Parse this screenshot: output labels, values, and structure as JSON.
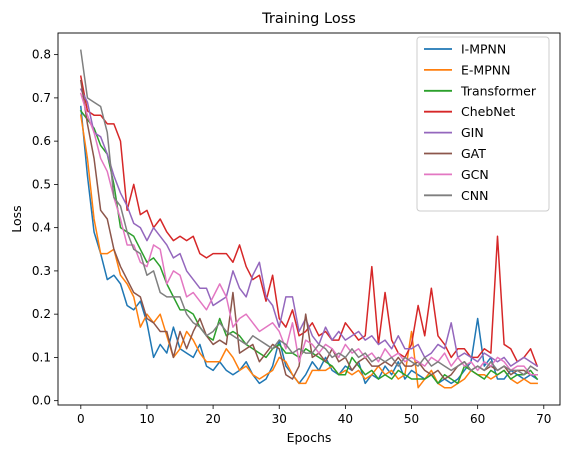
{
  "chart_data": {
    "type": "line",
    "title": "Training Loss",
    "xlabel": "Epochs",
    "ylabel": "Loss",
    "xlim": [
      -3.45,
      72.45
    ],
    "ylim": [
      -0.01,
      0.85
    ],
    "xticks": [
      0,
      10,
      20,
      30,
      40,
      50,
      60,
      70
    ],
    "yticks": [
      0.0,
      0.1,
      0.2,
      0.3,
      0.4,
      0.5,
      0.6,
      0.7,
      0.8
    ],
    "ytick_labels": [
      "0.0",
      "0.1",
      "0.2",
      "0.3",
      "0.4",
      "0.5",
      "0.6",
      "0.7",
      "0.8"
    ],
    "grid": false,
    "legend_position": "top-right",
    "x": [
      0,
      1,
      2,
      3,
      4,
      5,
      6,
      7,
      8,
      9,
      10,
      11,
      12,
      13,
      14,
      15,
      16,
      17,
      18,
      19,
      20,
      21,
      22,
      23,
      24,
      25,
      26,
      27,
      28,
      29,
      30,
      31,
      32,
      33,
      34,
      35,
      36,
      37,
      38,
      39,
      40,
      41,
      42,
      43,
      44,
      45,
      46,
      47,
      48,
      49,
      50,
      51,
      52,
      53,
      54,
      55,
      56,
      57,
      58,
      59,
      60,
      61,
      62,
      63,
      64,
      65,
      66,
      67,
      68,
      69
    ],
    "series": [
      {
        "name": "I-MPNN",
        "color": "#1f77b4",
        "values": [
          0.68,
          0.52,
          0.39,
          0.34,
          0.28,
          0.29,
          0.27,
          0.22,
          0.21,
          0.23,
          0.18,
          0.1,
          0.13,
          0.11,
          0.17,
          0.12,
          0.11,
          0.1,
          0.13,
          0.08,
          0.07,
          0.09,
          0.07,
          0.06,
          0.07,
          0.09,
          0.06,
          0.04,
          0.05,
          0.08,
          0.14,
          0.08,
          0.06,
          0.04,
          0.06,
          0.09,
          0.07,
          0.1,
          0.07,
          0.06,
          0.08,
          0.07,
          0.09,
          0.04,
          0.06,
          0.05,
          0.08,
          0.06,
          0.09,
          0.05,
          0.07,
          0.06,
          0.05,
          0.06,
          0.04,
          0.05,
          0.04,
          0.05,
          0.07,
          0.09,
          0.19,
          0.08,
          0.1,
          0.05,
          0.05,
          0.07,
          0.06,
          0.05,
          0.06,
          0.05
        ]
      },
      {
        "name": "E-MPNN",
        "color": "#ff7f0e",
        "values": [
          0.66,
          0.56,
          0.42,
          0.34,
          0.34,
          0.35,
          0.29,
          0.27,
          0.24,
          0.17,
          0.2,
          0.18,
          0.2,
          0.15,
          0.1,
          0.12,
          0.16,
          0.14,
          0.11,
          0.09,
          0.09,
          0.09,
          0.12,
          0.1,
          0.07,
          0.08,
          0.06,
          0.05,
          0.06,
          0.07,
          0.1,
          0.09,
          0.06,
          0.04,
          0.04,
          0.07,
          0.07,
          0.07,
          0.08,
          0.06,
          0.07,
          0.06,
          0.07,
          0.05,
          0.06,
          0.08,
          0.06,
          0.07,
          0.05,
          0.06,
          0.16,
          0.03,
          0.05,
          0.07,
          0.04,
          0.03,
          0.03,
          0.04,
          0.05,
          0.07,
          0.06,
          0.06,
          0.05,
          0.06,
          0.07,
          0.05,
          0.04,
          0.05,
          0.04,
          0.04
        ]
      },
      {
        "name": "Transformer",
        "color": "#2ca02c",
        "values": [
          0.67,
          0.65,
          0.63,
          0.59,
          0.57,
          0.5,
          0.4,
          0.39,
          0.38,
          0.35,
          0.32,
          0.33,
          0.31,
          0.27,
          0.24,
          0.21,
          0.21,
          0.2,
          0.17,
          0.15,
          0.14,
          0.19,
          0.15,
          0.16,
          0.15,
          0.13,
          0.12,
          0.11,
          0.1,
          0.12,
          0.13,
          0.11,
          0.11,
          0.1,
          0.12,
          0.11,
          0.1,
          0.09,
          0.08,
          0.06,
          0.06,
          0.1,
          0.08,
          0.06,
          0.07,
          0.05,
          0.06,
          0.05,
          0.07,
          0.06,
          0.05,
          0.05,
          0.05,
          0.06,
          0.04,
          0.06,
          0.05,
          0.04,
          0.08,
          0.07,
          0.06,
          0.05,
          0.07,
          0.06,
          0.07,
          0.05,
          0.06,
          0.06,
          0.07,
          0.05
        ]
      },
      {
        "name": "ChebNet",
        "color": "#d62728",
        "values": [
          0.75,
          0.67,
          0.66,
          0.66,
          0.64,
          0.64,
          0.6,
          0.44,
          0.5,
          0.43,
          0.44,
          0.4,
          0.42,
          0.39,
          0.37,
          0.38,
          0.37,
          0.38,
          0.34,
          0.33,
          0.34,
          0.34,
          0.34,
          0.32,
          0.36,
          0.31,
          0.28,
          0.29,
          0.23,
          0.29,
          0.19,
          0.17,
          0.21,
          0.15,
          0.16,
          0.18,
          0.15,
          0.16,
          0.14,
          0.14,
          0.18,
          0.16,
          0.14,
          0.15,
          0.31,
          0.13,
          0.25,
          0.14,
          0.11,
          0.1,
          0.13,
          0.22,
          0.15,
          0.26,
          0.15,
          0.13,
          0.1,
          0.12,
          0.12,
          0.1,
          0.1,
          0.12,
          0.11,
          0.38,
          0.13,
          0.12,
          0.09,
          0.1,
          0.12,
          0.08
        ]
      },
      {
        "name": "GIN",
        "color": "#9467bd",
        "values": [
          0.72,
          0.69,
          0.62,
          0.61,
          0.57,
          0.52,
          0.48,
          0.45,
          0.41,
          0.4,
          0.37,
          0.4,
          0.38,
          0.36,
          0.33,
          0.34,
          0.3,
          0.28,
          0.26,
          0.26,
          0.22,
          0.23,
          0.24,
          0.3,
          0.26,
          0.24,
          0.29,
          0.32,
          0.24,
          0.22,
          0.17,
          0.24,
          0.24,
          0.16,
          0.19,
          0.15,
          0.13,
          0.17,
          0.14,
          0.16,
          0.14,
          0.15,
          0.16,
          0.14,
          0.15,
          0.13,
          0.14,
          0.12,
          0.15,
          0.12,
          0.12,
          0.13,
          0.1,
          0.11,
          0.13,
          0.12,
          0.18,
          0.1,
          0.11,
          0.1,
          0.09,
          0.11,
          0.1,
          0.09,
          0.1,
          0.08,
          0.09,
          0.1,
          0.09,
          0.08
        ]
      },
      {
        "name": "GAT",
        "color": "#8c564b",
        "values": [
          0.74,
          0.64,
          0.56,
          0.44,
          0.42,
          0.35,
          0.31,
          0.28,
          0.25,
          0.24,
          0.19,
          0.18,
          0.16,
          0.16,
          0.1,
          0.16,
          0.12,
          0.16,
          0.19,
          0.15,
          0.13,
          0.14,
          0.13,
          0.25,
          0.11,
          0.12,
          0.13,
          0.09,
          0.11,
          0.13,
          0.12,
          0.06,
          0.05,
          0.08,
          0.2,
          0.1,
          0.11,
          0.09,
          0.12,
          0.09,
          0.1,
          0.07,
          0.09,
          0.1,
          0.08,
          0.08,
          0.09,
          0.08,
          0.1,
          0.08,
          0.08,
          0.09,
          0.07,
          0.06,
          0.07,
          0.05,
          0.06,
          0.08,
          0.09,
          0.07,
          0.08,
          0.07,
          0.08,
          0.07,
          0.08,
          0.06,
          0.07,
          0.07,
          0.06,
          0.06
        ]
      },
      {
        "name": "GCN",
        "color": "#e377c2",
        "values": [
          0.71,
          0.66,
          0.62,
          0.56,
          0.53,
          0.47,
          0.42,
          0.36,
          0.36,
          0.32,
          0.31,
          0.36,
          0.35,
          0.27,
          0.3,
          0.29,
          0.24,
          0.25,
          0.23,
          0.21,
          0.24,
          0.27,
          0.24,
          0.17,
          0.19,
          0.2,
          0.18,
          0.16,
          0.17,
          0.18,
          0.16,
          0.12,
          0.18,
          0.09,
          0.14,
          0.13,
          0.11,
          0.13,
          0.12,
          0.1,
          0.13,
          0.11,
          0.12,
          0.1,
          0.11,
          0.09,
          0.12,
          0.1,
          0.11,
          0.09,
          0.1,
          0.09,
          0.08,
          0.1,
          0.09,
          0.11,
          0.08,
          0.1,
          0.08,
          0.09,
          0.07,
          0.09,
          0.08,
          0.1,
          0.09,
          0.07,
          0.08,
          0.08,
          0.06,
          0.06
        ]
      },
      {
        "name": "CNN",
        "color": "#7f7f7f",
        "values": [
          0.81,
          0.7,
          0.69,
          0.68,
          0.62,
          0.47,
          0.45,
          0.39,
          0.35,
          0.34,
          0.29,
          0.3,
          0.25,
          0.24,
          0.24,
          0.24,
          0.2,
          0.18,
          0.17,
          0.15,
          0.16,
          0.18,
          0.16,
          0.15,
          0.14,
          0.13,
          0.15,
          0.14,
          0.13,
          0.12,
          0.14,
          0.13,
          0.11,
          0.12,
          0.11,
          0.11,
          0.13,
          0.12,
          0.1,
          0.11,
          0.1,
          0.12,
          0.1,
          0.11,
          0.09,
          0.1,
          0.09,
          0.1,
          0.08,
          0.1,
          0.09,
          0.08,
          0.1,
          0.08,
          0.09,
          0.08,
          0.07,
          0.08,
          0.09,
          0.07,
          0.08,
          0.07,
          0.09,
          0.07,
          0.08,
          0.07,
          0.07,
          0.06,
          0.08,
          0.07
        ]
      }
    ]
  }
}
